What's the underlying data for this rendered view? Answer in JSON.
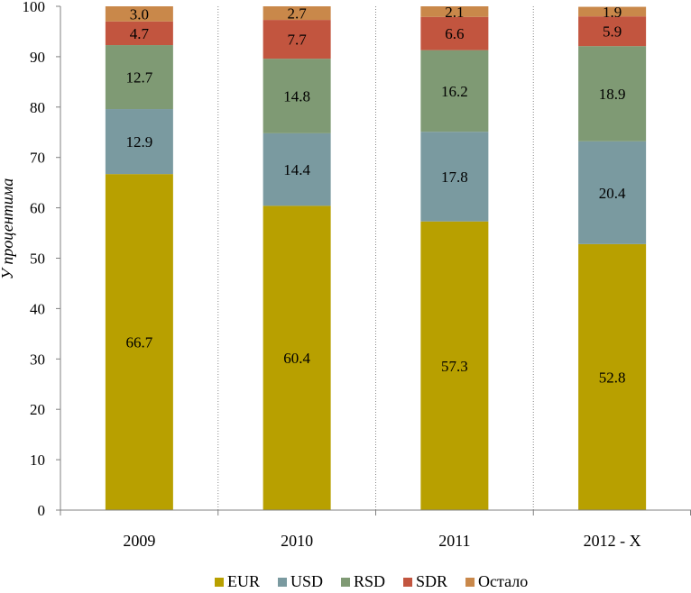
{
  "chart_data": {
    "type": "bar",
    "stacked": true,
    "title": "",
    "xlabel": "",
    "ylabel": "У процентима",
    "ylim": [
      0,
      100
    ],
    "yticks": [
      0,
      10,
      20,
      30,
      40,
      50,
      60,
      70,
      80,
      90,
      100
    ],
    "grid": "vertical dotted lines between categories",
    "legend_position": "bottom",
    "categories": [
      "2009",
      "2010",
      "2011",
      "2012 - X"
    ],
    "series": [
      {
        "name": "EUR",
        "color": "#b8a000",
        "values": [
          66.7,
          60.4,
          57.3,
          52.8
        ]
      },
      {
        "name": "USD",
        "color": "#7a9aa0",
        "values": [
          12.9,
          14.4,
          17.8,
          20.4
        ]
      },
      {
        "name": "RSD",
        "color": "#7f9a74",
        "values": [
          12.7,
          14.8,
          16.2,
          18.9
        ]
      },
      {
        "name": "SDR",
        "color": "#c2553f",
        "values": [
          4.7,
          7.7,
          6.6,
          5.9
        ]
      },
      {
        "name": "Остало",
        "color": "#c9884a",
        "values": [
          3.0,
          2.7,
          2.1,
          1.9
        ]
      }
    ]
  }
}
